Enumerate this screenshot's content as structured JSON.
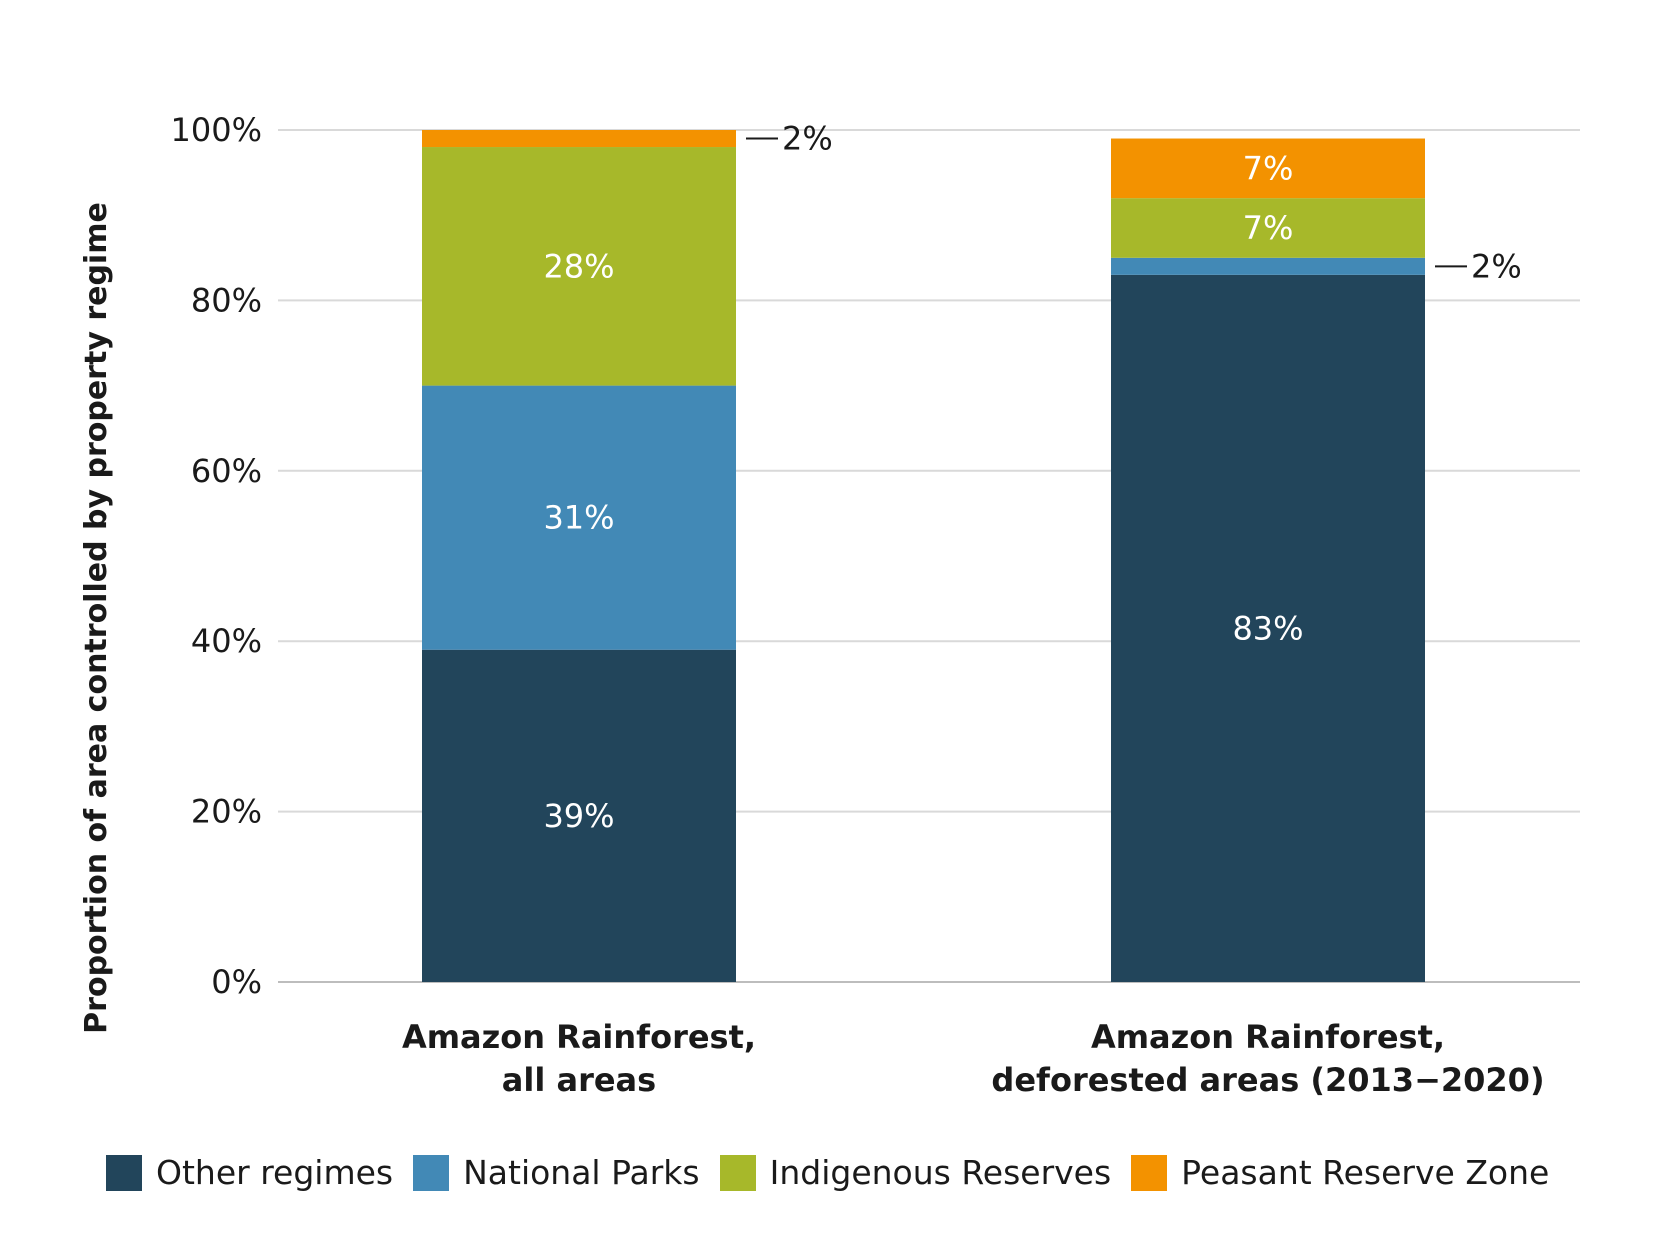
{
  "chart_data": {
    "type": "bar",
    "stacked": true,
    "ylabel": "Proportion of area controlled by property regime",
    "ylim": [
      0,
      100
    ],
    "yticks": [
      "0%",
      "20%",
      "40%",
      "60%",
      "80%",
      "100%"
    ],
    "categories": [
      [
        "Amazon Rainforest,",
        "all areas"
      ],
      [
        "Amazon Rainforest,",
        "deforested areas (2013−2020)"
      ]
    ],
    "series": [
      {
        "name": "Other regimes",
        "color": "#22455b",
        "values": [
          39,
          83
        ],
        "labels": [
          "39%",
          "83%"
        ]
      },
      {
        "name": "National Parks",
        "color": "#4289b6",
        "values": [
          31,
          2
        ],
        "labels": [
          "31%",
          "2%"
        ]
      },
      {
        "name": "Indigenous Reserves",
        "color": "#a7b82a",
        "values": [
          28,
          7
        ],
        "labels": [
          "28%",
          "7%"
        ]
      },
      {
        "name": "Peasant Reserve Zone",
        "color": "#f39200",
        "values": [
          2,
          7
        ],
        "labels": [
          "2%",
          "7%"
        ]
      }
    ],
    "grid": true,
    "legend_position": "bottom"
  }
}
